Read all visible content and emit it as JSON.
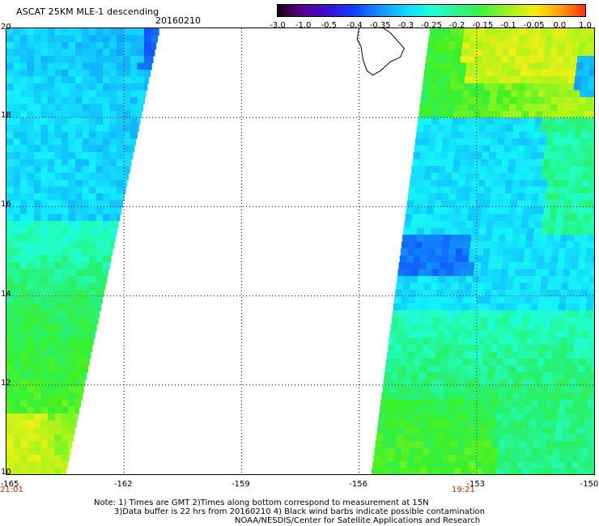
{
  "header": {
    "title": "ASCAT 25KM MLE-1 descending",
    "date": "20160210"
  },
  "colorbar": {
    "ticks": [
      "-3.0",
      "-1.0",
      "-0.5",
      "-0.4",
      "-0.35",
      "-0.3",
      "-0.25",
      "-0.2",
      "-0.15",
      "-0.1",
      "-0.05",
      "0.0",
      "1.0"
    ],
    "colors": [
      "#1a0010",
      "#5a0090",
      "#3a10d0",
      "#1040ff",
      "#1890ff",
      "#10d8ff",
      "#20ffd8",
      "#30f090",
      "#40f040",
      "#a0f020",
      "#f0f010",
      "#ffa010",
      "#ff3010"
    ]
  },
  "map": {
    "lat_labels": [
      "20",
      "18",
      "16",
      "14",
      "12",
      "10"
    ],
    "lon_labels": [
      "-165",
      "-162",
      "-159",
      "-156",
      "-153",
      "-150"
    ],
    "lat_range": [
      10,
      20
    ],
    "lon_range": [
      -165,
      -150
    ],
    "left_swath": {
      "top_right_lon": -161.1,
      "bottom_right_lon": -163.5,
      "time": "21:01"
    },
    "right_swath": {
      "top_left_lon": -154.2,
      "bottom_left_lon": -155.7,
      "time": "19:21"
    },
    "landmass": "Hawaii Island",
    "grid": "dotted"
  },
  "notes": {
    "line1": "Note: 1) Times are GMT 2)Times along bottom correspond to measurement at 15N",
    "line2": "3)Data buffer is 22 hrs from 20160210 4) Black wind barbs indicate possible contamination",
    "line3": "NOAA/NESDIS/Center for Satellite Applications and Research"
  }
}
